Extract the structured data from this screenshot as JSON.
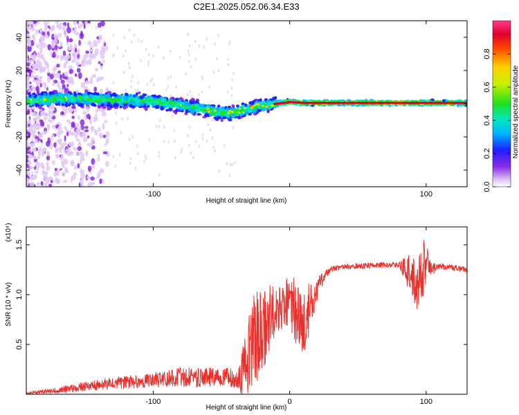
{
  "title": "C2E1.2025.052.06.34.E33",
  "chart_data": [
    {
      "type": "heatmap",
      "xlabel": "Height of straight line (km)",
      "ylabel": "Frequency (Hz)",
      "xlim": [
        -193,
        130
      ],
      "ylim": [
        -50,
        50
      ],
      "xticks": [
        -100,
        0,
        100
      ],
      "xtick_labels": [
        "-100",
        "",
        "100"
      ],
      "yticks": [
        -40,
        -20,
        0,
        20,
        40
      ],
      "ytick_labels": [
        "-40",
        "-20",
        "0",
        "20",
        "40"
      ],
      "colorbar": {
        "label": "Normalized spectral amplitude",
        "range": [
          0,
          1
        ],
        "ticks": [
          0.0,
          0.2,
          0.4,
          0.6,
          0.8
        ],
        "tick_labels": [
          "0.0",
          "0.2",
          "0.4",
          "0.6",
          "0.8"
        ]
      },
      "ridge": {
        "x": [
          -193,
          -170,
          -150,
          -130,
          -110,
          -95,
          -80,
          -65,
          -55,
          -48,
          -40,
          -30,
          -20,
          -10,
          0,
          10,
          30,
          60,
          90,
          130
        ],
        "freq": [
          2,
          3,
          3,
          2,
          2,
          1,
          -1,
          -3,
          -5,
          -6,
          -5,
          -3,
          -1,
          0,
          1,
          0.5,
          0.5,
          0.5,
          0.5,
          0.5
        ]
      }
    },
    {
      "type": "line",
      "xlabel": "Height of straight line (km)",
      "ylabel": "SNR (10 * v/v)",
      "y_multiplier": "(x10⁴)",
      "xlim": [
        -193,
        130
      ],
      "ylim": [
        0,
        1.68
      ],
      "xticks": [
        -100,
        0,
        100
      ],
      "xtick_labels": [
        "-100",
        "0",
        "100"
      ],
      "yticks": [
        0.5,
        1.0,
        1.5
      ],
      "ytick_labels": [
        "0.5",
        "1.0",
        "1.5"
      ],
      "series": [
        {
          "color": "#e8302c",
          "x": [
            -193,
            -170,
            -150,
            -130,
            -110,
            -95,
            -80,
            -65,
            -55,
            -45,
            -38,
            -33,
            -28,
            -24,
            -20,
            -15,
            -10,
            -5,
            0,
            5,
            10,
            15,
            20,
            25,
            30,
            40,
            50,
            60,
            70,
            80,
            88,
            94,
            98,
            103,
            110,
            120,
            130
          ],
          "y": [
            0.01,
            0.04,
            0.08,
            0.11,
            0.13,
            0.15,
            0.17,
            0.17,
            0.18,
            0.17,
            0.14,
            0.3,
            0.5,
            0.58,
            0.62,
            0.75,
            0.82,
            0.88,
            0.95,
            0.8,
            0.65,
            0.9,
            1.05,
            1.18,
            1.26,
            1.28,
            1.29,
            1.29,
            1.3,
            1.3,
            1.22,
            1.12,
            1.3,
            1.26,
            1.28,
            1.27,
            1.25
          ],
          "noise": [
            0.01,
            0.03,
            0.05,
            0.06,
            0.07,
            0.08,
            0.1,
            0.1,
            0.1,
            0.1,
            0.1,
            0.35,
            0.45,
            0.5,
            0.4,
            0.35,
            0.25,
            0.25,
            0.3,
            0.35,
            0.35,
            0.25,
            0.12,
            0.06,
            0.03,
            0.03,
            0.03,
            0.03,
            0.03,
            0.03,
            0.2,
            0.3,
            0.35,
            0.08,
            0.03,
            0.03,
            0.03
          ]
        }
      ]
    }
  ]
}
